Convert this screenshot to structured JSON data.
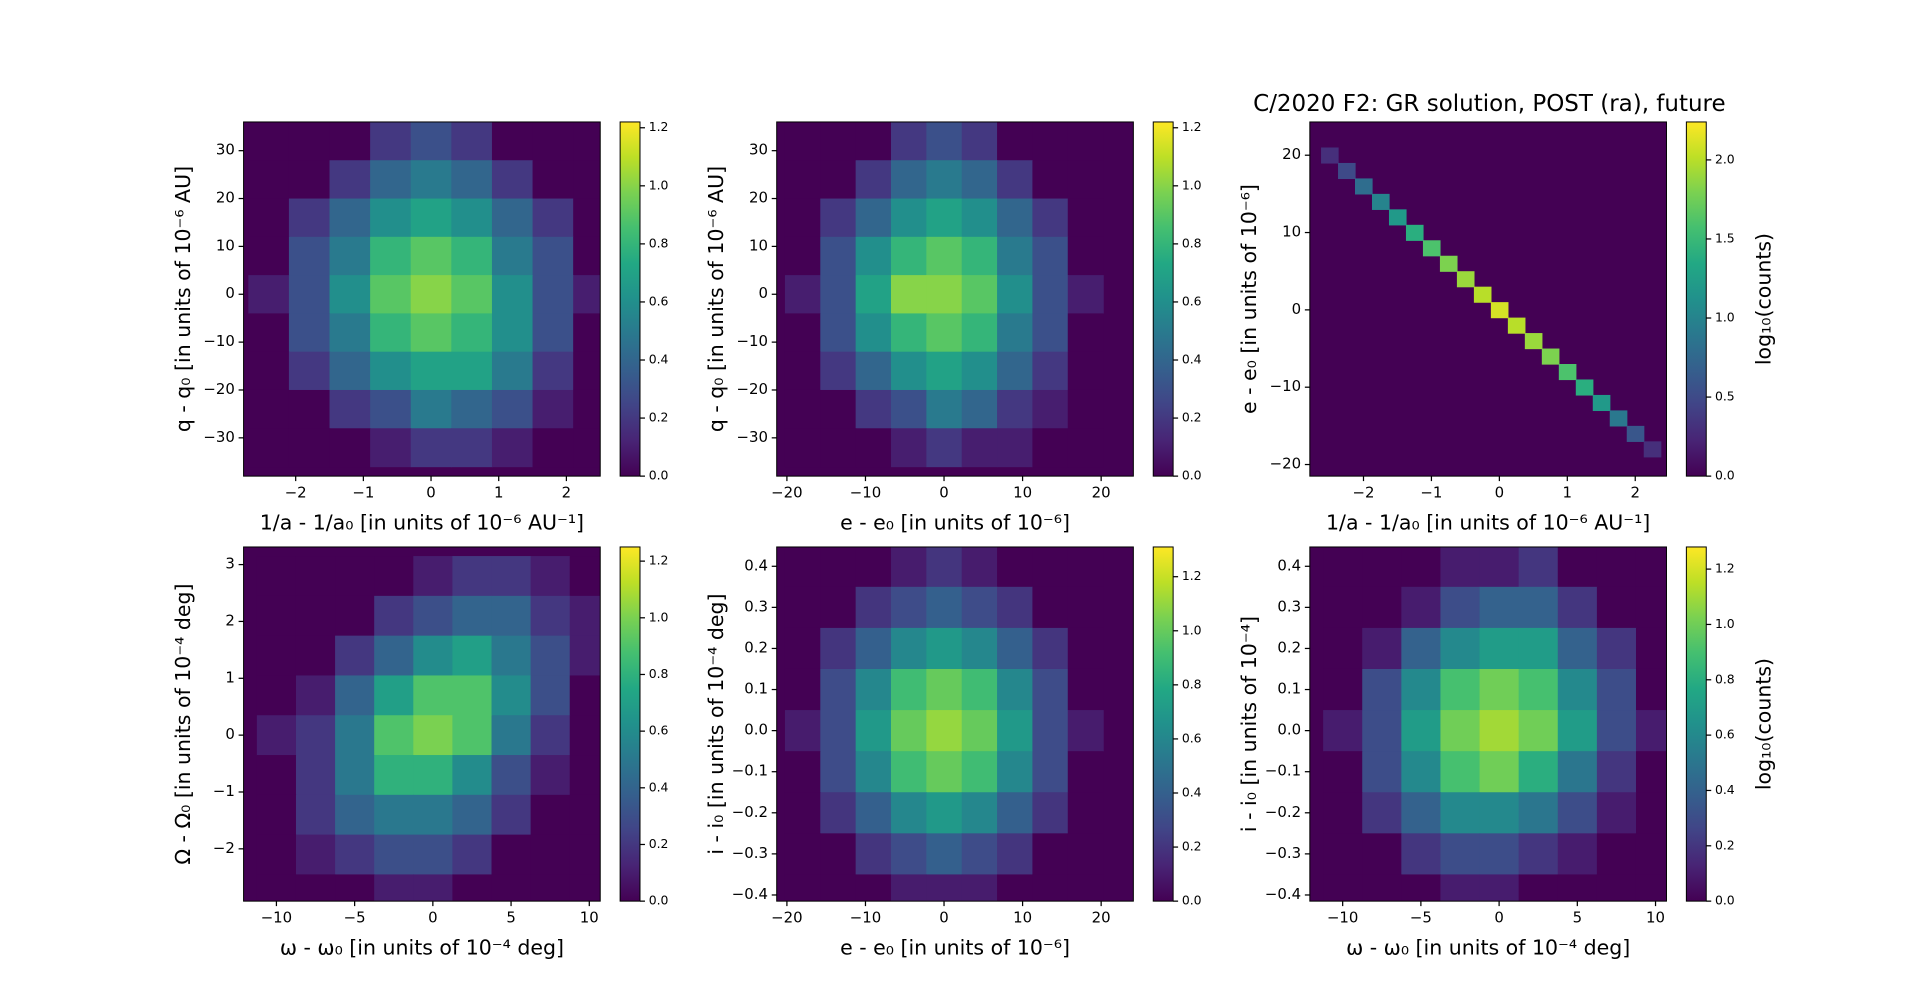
{
  "chart_data": [
    {
      "type": "hexbin",
      "colormap": "viridis",
      "xlabel": "1/a - 1/a₀ [in units of 10⁻⁶ AU⁻¹]",
      "ylabel": "q - q₀ [in units of 10⁻⁶ AU]",
      "xlim": [
        -2.77,
        2.5
      ],
      "ylim": [
        -38,
        36
      ],
      "clim": [
        0,
        1.22
      ],
      "xticks": [
        {
          "value": -2,
          "label": "−2"
        },
        {
          "value": -1,
          "label": "−1"
        },
        0,
        1,
        2
      ],
      "yticks": [
        {
          "value": -30,
          "label": "−30"
        },
        {
          "value": -20,
          "label": "−20"
        },
        {
          "value": -10,
          "label": "−10"
        },
        0,
        10,
        20,
        30
      ],
      "cticks": [
        {
          "value": 0,
          "label": "0.0"
        },
        0.2,
        0.4,
        0.6,
        0.8,
        {
          "value": 1,
          "label": "1.0"
        },
        1.2
      ],
      "x": [
        -2.4,
        -1.8,
        -1.2,
        -0.6,
        0,
        0.6,
        1.2,
        1.8,
        2.4
      ],
      "y": [
        32,
        24,
        16,
        8,
        0,
        -8,
        -16,
        -24,
        -32
      ],
      "z": [
        [
          0,
          0,
          0,
          0.2,
          0.3,
          0.2,
          0,
          0,
          0
        ],
        [
          0,
          0,
          0.2,
          0.4,
          0.5,
          0.4,
          0.2,
          0,
          0
        ],
        [
          0,
          0.2,
          0.4,
          0.6,
          0.7,
          0.6,
          0.4,
          0.2,
          0
        ],
        [
          0,
          0.3,
          0.5,
          0.8,
          0.9,
          0.8,
          0.5,
          0.3,
          0
        ],
        [
          0.1,
          0.3,
          0.6,
          0.9,
          1.0,
          0.9,
          0.6,
          0.3,
          0.1
        ],
        [
          0,
          0.3,
          0.5,
          0.8,
          0.9,
          0.8,
          0.6,
          0.3,
          0
        ],
        [
          0,
          0.2,
          0.4,
          0.6,
          0.7,
          0.7,
          0.5,
          0.2,
          0
        ],
        [
          0,
          0,
          0.2,
          0.3,
          0.5,
          0.4,
          0.3,
          0.1,
          0
        ],
        [
          0,
          0,
          0,
          0.1,
          0.2,
          0.2,
          0.1,
          0,
          0
        ]
      ]
    },
    {
      "type": "hexbin",
      "colormap": "viridis",
      "xlabel": "e - e₀ [in units of 10⁻⁶]",
      "ylabel": "q - q₀ [in units of 10⁻⁶ AU]",
      "xlim": [
        -21.3,
        24.1
      ],
      "ylim": [
        -38,
        36
      ],
      "clim": [
        0,
        1.22
      ],
      "xticks": [
        {
          "value": -20,
          "label": "−20"
        },
        {
          "value": -10,
          "label": "−10"
        },
        0,
        10,
        20
      ],
      "yticks": [
        {
          "value": -30,
          "label": "−30"
        },
        {
          "value": -20,
          "label": "−20"
        },
        {
          "value": -10,
          "label": "−10"
        },
        0,
        10,
        20,
        30
      ],
      "cticks": [
        {
          "value": 0,
          "label": "0.0"
        },
        0.2,
        0.4,
        0.6,
        0.8,
        {
          "value": 1,
          "label": "1.0"
        },
        1.2
      ],
      "x": [
        -18,
        -13.5,
        -9,
        -4.5,
        0,
        4.5,
        9,
        13.5,
        18
      ],
      "y": [
        32,
        24,
        16,
        8,
        0,
        -8,
        -16,
        -24,
        -32
      ],
      "z": [
        [
          0,
          0,
          0,
          0.2,
          0.3,
          0.2,
          0,
          0,
          0
        ],
        [
          0,
          0,
          0.2,
          0.4,
          0.5,
          0.4,
          0.2,
          0,
          0
        ],
        [
          0,
          0.2,
          0.4,
          0.6,
          0.7,
          0.6,
          0.4,
          0.2,
          0
        ],
        [
          0,
          0.3,
          0.6,
          0.8,
          0.9,
          0.8,
          0.5,
          0.3,
          0
        ],
        [
          0.1,
          0.3,
          0.7,
          1.0,
          1.0,
          0.9,
          0.6,
          0.3,
          0.1
        ],
        [
          0,
          0.3,
          0.6,
          0.8,
          0.9,
          0.8,
          0.5,
          0.3,
          0
        ],
        [
          0,
          0.2,
          0.4,
          0.6,
          0.7,
          0.6,
          0.4,
          0.2,
          0
        ],
        [
          0,
          0,
          0.2,
          0.3,
          0.5,
          0.4,
          0.2,
          0.1,
          0
        ],
        [
          0,
          0,
          0,
          0.1,
          0.2,
          0.1,
          0.1,
          0,
          0
        ]
      ]
    },
    {
      "type": "hexbin",
      "colormap": "viridis",
      "title": "C/2020 F2: GR solution, POST (ra), future",
      "xlabel": "1/a - 1/a₀ [in units of 10⁻⁶ AU⁻¹]",
      "ylabel": "e - e₀ [in units of 10⁻⁶]",
      "clabel": "log₁₀(counts)",
      "xlim": [
        -2.79,
        2.46
      ],
      "ylim": [
        -21.5,
        24.3
      ],
      "clim": [
        0,
        2.24
      ],
      "xticks": [
        {
          "value": -2,
          "label": "−2"
        },
        {
          "value": -1,
          "label": "−1"
        },
        0,
        1,
        2
      ],
      "yticks": [
        {
          "value": -20,
          "label": "−20"
        },
        {
          "value": -10,
          "label": "−10"
        },
        0,
        10,
        20
      ],
      "cticks": [
        {
          "value": 0,
          "label": "0.0"
        },
        0.5,
        {
          "value": 1,
          "label": "1.0"
        },
        1.5,
        {
          "value": 2,
          "label": "2.0"
        }
      ],
      "x": [
        -2.5,
        -2.25,
        -2,
        -1.75,
        -1.5,
        -1.25,
        -1,
        -0.75,
        -0.5,
        -0.25,
        0,
        0.25,
        0.5,
        0.75,
        1,
        1.25,
        1.5,
        1.75,
        2,
        2.25
      ],
      "y": [
        20,
        18,
        16,
        14,
        12,
        10,
        8,
        6,
        4,
        2,
        0,
        -2,
        -4,
        -6,
        -8,
        -10,
        -12,
        -14,
        -16,
        -18
      ],
      "z": [
        0.3,
        0.5,
        0.8,
        1.0,
        1.2,
        1.4,
        1.6,
        1.8,
        1.9,
        2.0,
        2.1,
        2.0,
        1.9,
        1.8,
        1.6,
        1.4,
        1.2,
        0.9,
        0.6,
        0.3
      ]
    },
    {
      "type": "hexbin",
      "colormap": "viridis",
      "xlabel": "ω - ω₀ [in units of 10⁻⁴ deg]",
      "ylabel": "Ω - Ω₀ [in units of 10⁻⁴ deg]",
      "xlim": [
        -12.1,
        10.7
      ],
      "ylim": [
        -2.92,
        3.31
      ],
      "clim": [
        0,
        1.25
      ],
      "xticks": [
        {
          "value": -10,
          "label": "−10"
        },
        {
          "value": -5,
          "label": "−5"
        },
        0,
        5,
        10
      ],
      "yticks": [
        {
          "value": -2,
          "label": "−2"
        },
        {
          "value": -1,
          "label": "−1"
        },
        0,
        1,
        2,
        3
      ],
      "cticks": [
        {
          "value": 0,
          "label": "0.0"
        },
        0.2,
        0.4,
        0.6,
        0.8,
        {
          "value": 1,
          "label": "1.0"
        },
        1.2
      ],
      "x": [
        -10,
        -7.5,
        -5,
        -2.5,
        0,
        2.5,
        5,
        7.5,
        10
      ],
      "y": [
        2.8,
        2.1,
        1.4,
        0.7,
        0,
        -0.7,
        -1.4,
        -2.1,
        -2.8
      ],
      "z": [
        [
          0,
          0,
          0,
          0,
          0.1,
          0.2,
          0.2,
          0.1,
          0
        ],
        [
          0,
          0,
          0,
          0.2,
          0.3,
          0.4,
          0.4,
          0.2,
          0.1
        ],
        [
          0,
          0,
          0.2,
          0.4,
          0.6,
          0.7,
          0.5,
          0.3,
          0.1
        ],
        [
          0,
          0.1,
          0.4,
          0.7,
          0.9,
          0.9,
          0.6,
          0.3,
          0
        ],
        [
          0.1,
          0.2,
          0.5,
          0.9,
          1.0,
          0.9,
          0.5,
          0.2,
          0
        ],
        [
          0,
          0.2,
          0.5,
          0.8,
          0.8,
          0.6,
          0.3,
          0.1,
          0
        ],
        [
          0,
          0.2,
          0.4,
          0.5,
          0.5,
          0.4,
          0.2,
          0,
          0
        ],
        [
          0,
          0.1,
          0.2,
          0.3,
          0.3,
          0.2,
          0,
          0,
          0
        ],
        [
          0,
          0,
          0,
          0.1,
          0.1,
          0,
          0,
          0,
          0
        ]
      ]
    },
    {
      "type": "hexbin",
      "colormap": "viridis",
      "xlabel": "e - e₀ [in units of 10⁻⁶]",
      "ylabel": "i - i₀ [in units of 10⁻⁴ deg]",
      "xlim": [
        -21.3,
        24.1
      ],
      "ylim": [
        -0.415,
        0.447
      ],
      "clim": [
        0,
        1.31
      ],
      "xticks": [
        {
          "value": -20,
          "label": "−20"
        },
        {
          "value": -10,
          "label": "−10"
        },
        0,
        10,
        20
      ],
      "yticks": [
        {
          "value": -0.4,
          "label": "−0.4"
        },
        {
          "value": -0.3,
          "label": "−0.3"
        },
        {
          "value": -0.2,
          "label": "−0.2"
        },
        {
          "value": -0.1,
          "label": "−0.1"
        },
        {
          "value": 0,
          "label": "0.0"
        },
        0.1,
        0.2,
        0.3,
        0.4
      ],
      "cticks": [
        {
          "value": 0,
          "label": "0.0"
        },
        0.2,
        0.4,
        0.6,
        0.8,
        {
          "value": 1,
          "label": "1.0"
        },
        1.2
      ],
      "x": [
        -18,
        -13.5,
        -9,
        -4.5,
        0,
        4.5,
        9,
        13.5,
        18
      ],
      "y": [
        0.4,
        0.3,
        0.2,
        0.1,
        0,
        -0.1,
        -0.2,
        -0.3,
        -0.4
      ],
      "z": [
        [
          0,
          0,
          0,
          0.1,
          0.2,
          0.1,
          0,
          0,
          0
        ],
        [
          0,
          0,
          0.2,
          0.3,
          0.4,
          0.3,
          0.2,
          0,
          0
        ],
        [
          0,
          0.2,
          0.4,
          0.6,
          0.7,
          0.6,
          0.4,
          0.2,
          0
        ],
        [
          0,
          0.3,
          0.6,
          0.9,
          1.0,
          0.9,
          0.6,
          0.3,
          0
        ],
        [
          0.1,
          0.3,
          0.7,
          1.0,
          1.1,
          1.0,
          0.7,
          0.3,
          0.1
        ],
        [
          0,
          0.3,
          0.6,
          0.9,
          1.0,
          0.9,
          0.6,
          0.3,
          0
        ],
        [
          0,
          0.2,
          0.4,
          0.6,
          0.7,
          0.6,
          0.4,
          0.2,
          0
        ],
        [
          0,
          0,
          0.2,
          0.3,
          0.4,
          0.3,
          0.2,
          0,
          0
        ],
        [
          0,
          0,
          0,
          0.1,
          0.1,
          0.1,
          0,
          0,
          0
        ]
      ]
    },
    {
      "type": "hexbin",
      "colormap": "viridis",
      "xlabel": "ω - ω₀ [in units of 10⁻⁴ deg]",
      "ylabel": "i - i₀ [in units of 10⁻⁴]",
      "clabel": "log₁₀(counts)",
      "xlim": [
        -12.1,
        10.7
      ],
      "ylim": [
        -0.415,
        0.447
      ],
      "clim": [
        0,
        1.28
      ],
      "xticks": [
        {
          "value": -10,
          "label": "−10"
        },
        {
          "value": -5,
          "label": "−5"
        },
        0,
        5,
        10
      ],
      "yticks": [
        {
          "value": -0.4,
          "label": "−0.4"
        },
        {
          "value": -0.3,
          "label": "−0.3"
        },
        {
          "value": -0.2,
          "label": "−0.2"
        },
        {
          "value": -0.1,
          "label": "−0.1"
        },
        {
          "value": 0,
          "label": "0.0"
        },
        0.1,
        0.2,
        0.3,
        0.4
      ],
      "cticks": [
        {
          "value": 0,
          "label": "0.0"
        },
        0.2,
        0.4,
        0.6,
        0.8,
        {
          "value": 1,
          "label": "1.0"
        },
        1.2
      ],
      "x": [
        -10,
        -7.5,
        -5,
        -2.5,
        0,
        2.5,
        5,
        7.5,
        10
      ],
      "y": [
        0.4,
        0.3,
        0.2,
        0.1,
        0,
        -0.1,
        -0.2,
        -0.3,
        -0.4
      ],
      "z": [
        [
          0,
          0,
          0,
          0.1,
          0.1,
          0.2,
          0,
          0,
          0
        ],
        [
          0,
          0,
          0.1,
          0.3,
          0.4,
          0.4,
          0.2,
          0,
          0
        ],
        [
          0,
          0.1,
          0.4,
          0.6,
          0.7,
          0.7,
          0.4,
          0.2,
          0
        ],
        [
          0,
          0.3,
          0.6,
          0.9,
          1.0,
          0.9,
          0.6,
          0.3,
          0
        ],
        [
          0.1,
          0.3,
          0.7,
          1.0,
          1.1,
          1.0,
          0.7,
          0.3,
          0.1
        ],
        [
          0,
          0.3,
          0.6,
          0.9,
          1.0,
          0.8,
          0.5,
          0.2,
          0
        ],
        [
          0,
          0.2,
          0.4,
          0.6,
          0.6,
          0.5,
          0.3,
          0.1,
          0
        ],
        [
          0,
          0,
          0.2,
          0.3,
          0.3,
          0.2,
          0.1,
          0,
          0
        ],
        [
          0,
          0,
          0,
          0.1,
          0.1,
          0,
          0,
          0,
          0
        ]
      ]
    }
  ]
}
